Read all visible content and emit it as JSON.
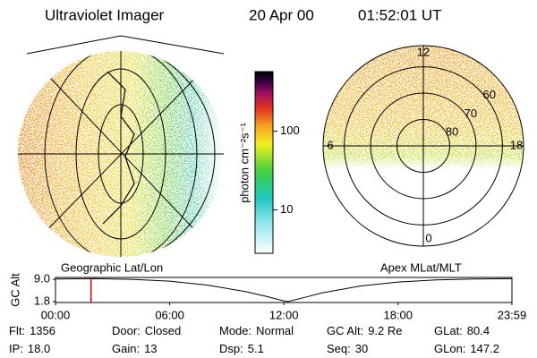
{
  "header": {
    "instrument": "Ultraviolet Imager",
    "date": "20 Apr 00",
    "time": "01:52:01 UT"
  },
  "colorbar": {
    "label": "photon cm⁻²s⁻¹",
    "log": true,
    "lim": [
      2.8,
      575
    ],
    "ticks": [
      10,
      100
    ]
  },
  "polar": {
    "rlim": [
      90,
      52
    ],
    "rings": [
      80,
      70,
      60
    ],
    "mlt": [
      12,
      6,
      0,
      18
    ]
  },
  "timeline": {
    "left_label": "Geographic Lat/Lon",
    "right_label": "Apex MLat/MLT",
    "y_label": "GC Alt",
    "xlim": [
      0,
      23.983
    ],
    "xticks": [
      {
        "value": 0,
        "label": "00:00"
      },
      {
        "value": 6,
        "label": "06:00"
      },
      {
        "value": 12,
        "label": "12:00"
      },
      {
        "value": 18,
        "label": "18:00"
      },
      {
        "value": 23.983,
        "label": "23:59"
      }
    ],
    "ylim": [
      1.5,
      9.6
    ],
    "yticks": [
      {
        "value": 9,
        "label": "9.0"
      },
      1.8
    ],
    "x": [
      0,
      2,
      4,
      6,
      8,
      10,
      11,
      12,
      12.2,
      13,
      14,
      16,
      18,
      20,
      22,
      23.983
    ],
    "values": [
      9.1,
      9.2,
      9.0,
      8.4,
      7.1,
      5.0,
      3.6,
      2.0,
      1.8,
      3.0,
      4.6,
      6.8,
      8.1,
      8.8,
      9.1,
      9.2
    ],
    "marker": 1.867,
    "marker_color": "#e00000"
  },
  "footer": [
    [
      {
        "label": "Flt:",
        "value": "1356"
      },
      {
        "label": "Door:",
        "value": "Closed"
      },
      {
        "label": "Mode:",
        "value": "Normal"
      },
      {
        "label": "GC Alt:",
        "value": "9.2 Re"
      },
      {
        "label": "GLat:",
        "value": "80.4"
      }
    ],
    [
      {
        "label": "IP:",
        "value": "18.0"
      },
      {
        "label": "Gain:",
        "value": "13"
      },
      {
        "label": "Dsp:",
        "value": "5.1"
      },
      {
        "label": "Seq:",
        "value": "30"
      },
      {
        "label": "GLon:",
        "value": "147.2"
      }
    ]
  ]
}
